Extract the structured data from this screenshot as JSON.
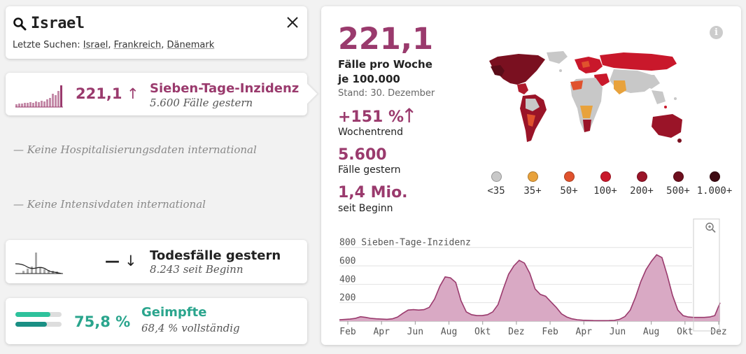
{
  "search": {
    "query": "Israel",
    "recent_label": "Letzte Suchen:",
    "recent": [
      "Israel",
      "Frankreich",
      "Dänemark"
    ]
  },
  "incidence": {
    "value": "221,1",
    "trend": "↑",
    "title": "Sieben-Tage-Inzidenz",
    "sub": "5.600 Fälle gestern"
  },
  "hospital_note": "— Keine Hospitalisierungsdaten international",
  "icu_note": "— Keine Intensivdaten international",
  "deaths": {
    "value": "—",
    "trend": "↓",
    "title": "Todesfälle gestern",
    "sub": "8.243 seit Beginn"
  },
  "vaccinated": {
    "value": "75,8 %",
    "title": "Geimpfte",
    "sub": "68,4 % vollständig",
    "bar_first": 0.758,
    "bar_full": 0.684
  },
  "detail": {
    "headline": "221,1",
    "headline_label_1": "Fälle pro Woche",
    "headline_label_2": "je 100.000",
    "stand": "Stand: 30. Dezember",
    "trend_value": "+151 %",
    "trend_arrow": "↑",
    "trend_label": "Wochentrend",
    "cases": "5.600",
    "cases_label": "Fälle gestern",
    "total": "1,4 Mio.",
    "total_label": "seit Beginn",
    "info_icon": "i"
  },
  "legend": [
    {
      "label": "<35",
      "color": "#c8c8c8"
    },
    {
      "label": "35+",
      "color": "#e8a23c"
    },
    {
      "label": "50+",
      "color": "#e0522d"
    },
    {
      "label": "100+",
      "color": "#c9182b"
    },
    {
      "label": "200+",
      "color": "#9a1428"
    },
    {
      "label": "500+",
      "color": "#6e0f1e"
    },
    {
      "label": "1.000+",
      "color": "#3e0a12"
    }
  ],
  "chart_data": {
    "type": "area",
    "title": "Sieben-Tage-Inzidenz",
    "ylabel": "Sieben-Tage-Inzidenz",
    "xlabel": "",
    "ylim": [
      0,
      850
    ],
    "yticks": [
      200,
      400,
      600,
      800
    ],
    "x_ticks": [
      "Feb",
      "Apr",
      "Jun",
      "Aug",
      "Okt",
      "Dez",
      "Feb",
      "Apr",
      "Jun",
      "Aug",
      "Okt",
      "Dez"
    ],
    "x_start_month": 1,
    "series": [
      {
        "name": "Sieben-Tage-Inzidenz Israel",
        "values": [
          15,
          18,
          22,
          30,
          48,
          40,
          30,
          25,
          22,
          20,
          25,
          45,
          85,
          120,
          125,
          120,
          125,
          150,
          240,
          380,
          480,
          470,
          420,
          220,
          100,
          70,
          60,
          60,
          70,
          100,
          180,
          350,
          510,
          600,
          660,
          630,
          520,
          350,
          290,
          270,
          210,
          150,
          80,
          45,
          25,
          15,
          10,
          8,
          6,
          5,
          5,
          6,
          8,
          20,
          50,
          120,
          260,
          430,
          560,
          650,
          720,
          690,
          500,
          280,
          120,
          60,
          45,
          40,
          40,
          40,
          45,
          60,
          200
        ]
      }
    ]
  }
}
